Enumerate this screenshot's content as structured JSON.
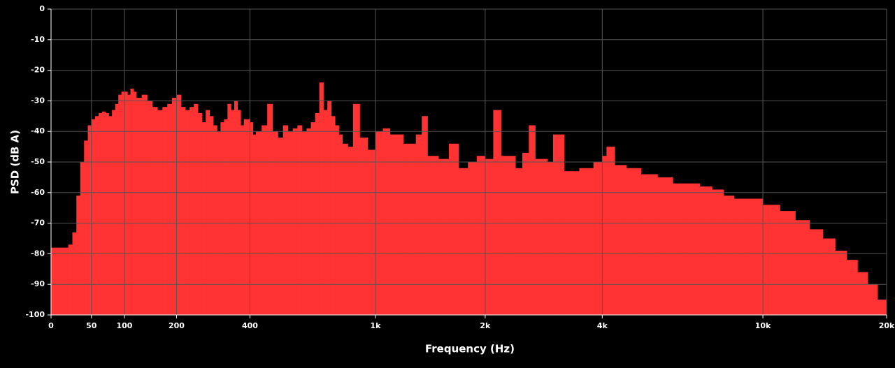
{
  "chart_data": {
    "type": "step-area",
    "xlabel": "Frequency (Hz)",
    "ylabel": "PSD (dB A)",
    "color": "#ff3333",
    "grid": true,
    "xlim": [
      0,
      20000
    ],
    "ylim": [
      -100,
      0
    ],
    "xticks": [
      0,
      50,
      100,
      200,
      400,
      {
        "value": 1000,
        "label": "1k"
      },
      {
        "value": 2000,
        "label": "2k"
      },
      {
        "value": 4000,
        "label": "4k"
      },
      {
        "value": 10000,
        "label": "10k"
      },
      {
        "value": 20000,
        "label": "20k"
      }
    ],
    "yticks": [
      -100,
      -90,
      -80,
      -70,
      -60,
      -50,
      -40,
      -30,
      -20,
      -10,
      0
    ],
    "x": [
      0,
      10,
      20,
      25,
      30,
      35,
      40,
      45,
      50,
      55,
      60,
      65,
      70,
      75,
      80,
      85,
      90,
      95,
      100,
      105,
      110,
      115,
      120,
      130,
      140,
      150,
      160,
      170,
      180,
      190,
      200,
      210,
      220,
      230,
      240,
      250,
      260,
      270,
      280,
      290,
      300,
      310,
      320,
      330,
      340,
      350,
      360,
      370,
      380,
      400,
      410,
      420,
      440,
      460,
      480,
      500,
      520,
      540,
      560,
      580,
      600,
      620,
      640,
      660,
      680,
      700,
      720,
      740,
      760,
      780,
      800,
      830,
      860,
      900,
      950,
      1000,
      1050,
      1100,
      1200,
      1300,
      1350,
      1400,
      1500,
      1600,
      1700,
      1800,
      1900,
      2000,
      2100,
      2200,
      2400,
      2500,
      2600,
      2700,
      2900,
      3000,
      3200,
      3500,
      3800,
      4000,
      4100,
      4300,
      4600,
      5000,
      5500,
      6000,
      6500,
      7000,
      7500,
      8000,
      8500,
      9000,
      10000,
      11000,
      12000,
      13000,
      14000,
      15000,
      16000,
      17000,
      18000,
      19000,
      20000
    ],
    "values": [
      -78,
      -78,
      -77,
      -73,
      -61,
      -50,
      -43,
      -38,
      -36,
      -35,
      -34,
      -33.5,
      -34,
      -35,
      -33,
      -31,
      -28,
      -27,
      -27,
      -28,
      -26,
      -27,
      -29,
      -28,
      -30,
      -32,
      -33,
      -32,
      -31,
      -29,
      -28,
      -32,
      -33,
      -32,
      -31,
      -34,
      -37,
      -33,
      -35,
      -38,
      -40,
      -37,
      -36,
      -31,
      -33,
      -30,
      -33,
      -38,
      -36,
      -37,
      -41,
      -40,
      -38,
      -31,
      -40,
      -42,
      -38,
      -40,
      -39,
      -38,
      -40,
      -39,
      -37,
      -34,
      -24,
      -33,
      -30,
      -35,
      -38,
      -41,
      -44,
      -45,
      -31,
      -42,
      -46,
      -40,
      -39,
      -41,
      -44,
      -41,
      -35,
      -48,
      -49,
      -44,
      -52,
      -50,
      -48,
      -49,
      -33,
      -48,
      -52,
      -47,
      -38,
      -49,
      -50,
      -41,
      -53,
      -52,
      -50,
      -48,
      -45,
      -51,
      -52,
      -54,
      -55,
      -57,
      -57,
      -58,
      -59,
      -61,
      -62,
      -62,
      -64,
      -66,
      -69,
      -72,
      -75,
      -79,
      -82,
      -86,
      -90,
      -95,
      -100
    ]
  }
}
